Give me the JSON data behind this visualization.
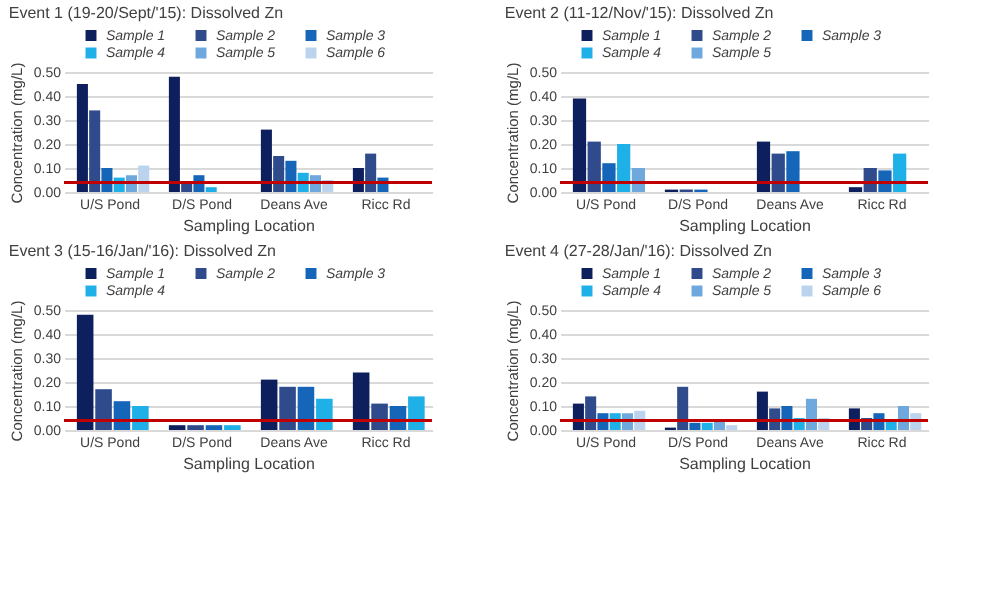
{
  "chart_data": [
    {
      "type": "bar",
      "title": "Event 1 (19-20/Sept/'15): Dissolved Zn",
      "xlabel": "Sampling Location",
      "ylabel": "Concentration (mg/L)",
      "categories": [
        "U/S Pond",
        "D/S Pond",
        "Deans Ave",
        "Ricc Rd"
      ],
      "ylim": [
        0,
        0.5
      ],
      "yticks": [
        {
          "value": 0,
          "label": "0.00"
        },
        {
          "value": 0.1,
          "label": "0.10"
        },
        {
          "value": 0.2,
          "label": "0.20"
        },
        {
          "value": 0.3,
          "label": "0.30"
        },
        {
          "value": 0.4,
          "label": "0.40"
        },
        {
          "value": 0.5,
          "label": "0.50"
        }
      ],
      "grid": "y",
      "legend": "top",
      "ref_lines": [
        {
          "axis": "y",
          "value": 0.04,
          "color": "#c00000"
        }
      ],
      "series": [
        {
          "name": "Sample 1",
          "color": "#0d1f5c",
          "values": [
            0.45,
            0.48,
            0.26,
            0.1
          ]
        },
        {
          "name": "Sample 2",
          "color": "#2f4b8c",
          "values": [
            0.34,
            0.04,
            0.15,
            0.16
          ]
        },
        {
          "name": "Sample 3",
          "color": "#1565b8",
          "values": [
            0.1,
            0.07,
            0.13,
            0.06
          ]
        },
        {
          "name": "Sample 4",
          "color": "#1fb0e8",
          "values": [
            0.06,
            0.02,
            0.08,
            null
          ]
        },
        {
          "name": "Sample 5",
          "color": "#6fa8dc",
          "values": [
            0.07,
            null,
            0.07,
            null
          ]
        },
        {
          "name": "Sample 6",
          "color": "#bcd3ee",
          "values": [
            0.11,
            null,
            0.05,
            null
          ]
        }
      ]
    },
    {
      "type": "bar",
      "title": "Event 2 (11-12/Nov/'15):  Dissolved Zn",
      "xlabel": "Sampling Location",
      "ylabel": "Concentration (mg/L)",
      "categories": [
        "U/S Pond",
        "D/S Pond",
        "Deans Ave",
        "Ricc Rd"
      ],
      "ylim": [
        0,
        0.5
      ],
      "yticks": [
        {
          "value": 0,
          "label": "0.00"
        },
        {
          "value": 0.1,
          "label": "0.10"
        },
        {
          "value": 0.2,
          "label": "0.20"
        },
        {
          "value": 0.3,
          "label": "0.30"
        },
        {
          "value": 0.4,
          "label": "0.40"
        },
        {
          "value": 0.5,
          "label": "0.50"
        }
      ],
      "grid": "y",
      "legend": "top",
      "ref_lines": [
        {
          "axis": "y",
          "value": 0.04,
          "color": "#c00000"
        }
      ],
      "series": [
        {
          "name": "Sample 1",
          "color": "#0d1f5c",
          "values": [
            0.39,
            0.01,
            0.21,
            0.02
          ]
        },
        {
          "name": "Sample 2",
          "color": "#2f4b8c",
          "values": [
            0.21,
            0.01,
            0.16,
            0.1
          ]
        },
        {
          "name": "Sample 3",
          "color": "#1565b8",
          "values": [
            0.12,
            0.01,
            0.17,
            0.09
          ]
        },
        {
          "name": "Sample 4",
          "color": "#1fb0e8",
          "values": [
            0.2,
            null,
            null,
            0.16
          ]
        },
        {
          "name": "Sample 5",
          "color": "#6fa8dc",
          "values": [
            0.1,
            null,
            null,
            null
          ]
        }
      ]
    },
    {
      "type": "bar",
      "title": "Event 3 (15-16/Jan/'16): Dissolved Zn",
      "xlabel": "Sampling Location",
      "ylabel": "Concentration (mg/L)",
      "categories": [
        "U/S Pond",
        "D/S Pond",
        "Deans Ave",
        "Ricc Rd"
      ],
      "ylim": [
        0,
        0.5
      ],
      "yticks": [
        {
          "value": 0,
          "label": "0.00"
        },
        {
          "value": 0.1,
          "label": "0.10"
        },
        {
          "value": 0.2,
          "label": "0.20"
        },
        {
          "value": 0.3,
          "label": "0.30"
        },
        {
          "value": 0.4,
          "label": "0.40"
        },
        {
          "value": 0.5,
          "label": "0.50"
        }
      ],
      "grid": "y",
      "legend": "top",
      "ref_lines": [
        {
          "axis": "y",
          "value": 0.04,
          "color": "#c00000"
        }
      ],
      "series": [
        {
          "name": "Sample 1",
          "color": "#0d1f5c",
          "values": [
            0.48,
            0.02,
            0.21,
            0.24
          ]
        },
        {
          "name": "Sample 2",
          "color": "#2f4b8c",
          "values": [
            0.17,
            0.02,
            0.18,
            0.11
          ]
        },
        {
          "name": "Sample 3",
          "color": "#1565b8",
          "values": [
            0.12,
            0.02,
            0.18,
            0.1
          ]
        },
        {
          "name": "Sample 4",
          "color": "#1fb0e8",
          "values": [
            0.1,
            0.02,
            0.13,
            0.14
          ]
        }
      ]
    },
    {
      "type": "bar",
      "title": "Event 4 (27-28/Jan/'16): Dissolved Zn",
      "xlabel": "Sampling Location",
      "ylabel": "Concentration (mg/L)",
      "categories": [
        "U/S Pond",
        "D/S Pond",
        "Deans Ave",
        "Ricc Rd"
      ],
      "ylim": [
        0,
        0.5
      ],
      "yticks": [
        {
          "value": 0,
          "label": "0.00"
        },
        {
          "value": 0.1,
          "label": "0.10"
        },
        {
          "value": 0.2,
          "label": "0.20"
        },
        {
          "value": 0.3,
          "label": "0.30"
        },
        {
          "value": 0.4,
          "label": "0.40"
        },
        {
          "value": 0.5,
          "label": "0.50"
        }
      ],
      "grid": "y",
      "legend": "top",
      "ref_lines": [
        {
          "axis": "y",
          "value": 0.04,
          "color": "#c00000"
        }
      ],
      "series": [
        {
          "name": "Sample 1",
          "color": "#0d1f5c",
          "values": [
            0.11,
            0.01,
            0.16,
            0.09
          ]
        },
        {
          "name": "Sample 2",
          "color": "#2f4b8c",
          "values": [
            0.14,
            0.18,
            0.09,
            0.05
          ]
        },
        {
          "name": "Sample 3",
          "color": "#1565b8",
          "values": [
            0.07,
            0.03,
            0.1,
            0.07
          ]
        },
        {
          "name": "Sample 4",
          "color": "#1fb0e8",
          "values": [
            0.07,
            0.03,
            0.05,
            0.04
          ]
        },
        {
          "name": "Sample 5",
          "color": "#6fa8dc",
          "values": [
            0.07,
            0.04,
            0.13,
            0.1
          ]
        },
        {
          "name": "Sample 6",
          "color": "#bcd3ee",
          "values": [
            0.08,
            0.02,
            0.05,
            0.07
          ]
        }
      ]
    }
  ]
}
